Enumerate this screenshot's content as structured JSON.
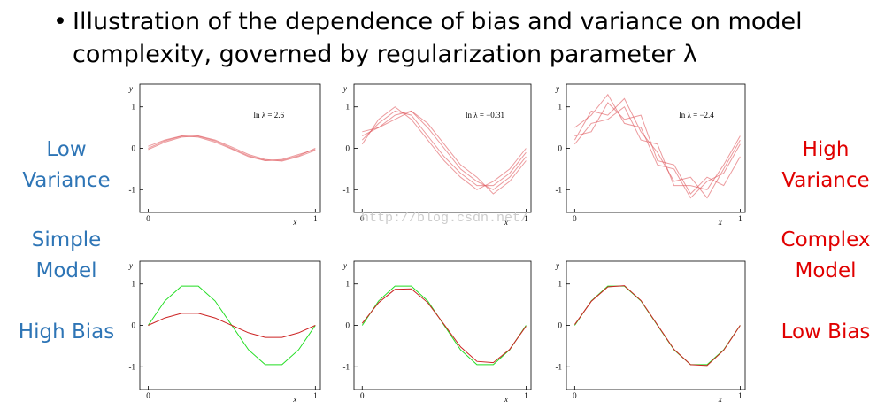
{
  "title_lines": [
    "Illustration of the dependence of bias and variance on model",
    "complexity, governed by regularization parameter λ"
  ],
  "left_labels": [
    [
      "Low",
      "Variance"
    ],
    [
      "Simple",
      "Model"
    ],
    [
      "High Bias"
    ]
  ],
  "right_labels": [
    [
      "High",
      "Variance"
    ],
    [
      "Complex",
      "Model"
    ],
    [
      "Low Bias"
    ]
  ],
  "watermark": "http://blog.csdn.net/",
  "chart_data": [
    {
      "type": "line",
      "annotation": "ln λ = 2.6",
      "x_label": "x",
      "y_label": "y",
      "x": [
        0,
        0.1,
        0.2,
        0.3,
        0.4,
        0.5,
        0.6,
        0.7,
        0.8,
        0.9,
        1
      ],
      "xlim": [
        -0.05,
        1.03
      ],
      "ylim": [
        -1.55,
        1.55
      ],
      "xticks": [
        0,
        1
      ],
      "yticks": [
        -1,
        0,
        1
      ],
      "series": [
        {
          "color": "#e0565b",
          "values": [
            0.0,
            0.18,
            0.29,
            0.29,
            0.18,
            0.0,
            -0.18,
            -0.29,
            -0.29,
            -0.18,
            0.0
          ]
        },
        {
          "color": "#e0565b",
          "values": [
            0.05,
            0.2,
            0.3,
            0.27,
            0.15,
            -0.02,
            -0.2,
            -0.3,
            -0.27,
            -0.15,
            -0.03
          ]
        },
        {
          "color": "#e0565b",
          "values": [
            -0.03,
            0.15,
            0.27,
            0.3,
            0.2,
            0.03,
            -0.15,
            -0.27,
            -0.31,
            -0.2,
            -0.05
          ]
        }
      ]
    },
    {
      "type": "line",
      "annotation": "ln λ = −0.31",
      "x_label": "x",
      "y_label": "y",
      "x": [
        0,
        0.1,
        0.2,
        0.3,
        0.4,
        0.5,
        0.6,
        0.7,
        0.8,
        0.9,
        1
      ],
      "xlim": [
        -0.05,
        1.03
      ],
      "ylim": [
        -1.55,
        1.55
      ],
      "xticks": [
        0,
        1
      ],
      "yticks": [
        -1,
        0,
        1
      ],
      "series": [
        {
          "color": "#e0565b",
          "values": [
            0.2,
            0.6,
            0.9,
            0.8,
            0.3,
            -0.2,
            -0.6,
            -0.9,
            -0.9,
            -0.6,
            -0.1
          ]
        },
        {
          "color": "#e0565b",
          "values": [
            0.3,
            0.5,
            0.8,
            0.9,
            0.5,
            0.0,
            -0.5,
            -0.8,
            -1.0,
            -0.7,
            -0.2
          ]
        },
        {
          "color": "#e0565b",
          "values": [
            0.1,
            0.7,
            1.0,
            0.7,
            0.2,
            -0.3,
            -0.7,
            -1.0,
            -0.8,
            -0.5,
            0.0
          ]
        },
        {
          "color": "#e0565b",
          "values": [
            0.4,
            0.5,
            0.7,
            0.9,
            0.6,
            0.1,
            -0.4,
            -0.7,
            -1.1,
            -0.8,
            -0.3
          ]
        }
      ]
    },
    {
      "type": "line",
      "annotation": "ln λ = −2.4",
      "x_label": "x",
      "y_label": "y",
      "x": [
        0,
        0.1,
        0.2,
        0.3,
        0.4,
        0.5,
        0.6,
        0.7,
        0.8,
        0.9,
        1
      ],
      "xlim": [
        -0.05,
        1.03
      ],
      "ylim": [
        -1.55,
        1.55
      ],
      "xticks": [
        0,
        1
      ],
      "yticks": [
        -1,
        0,
        1
      ],
      "series": [
        {
          "color": "#e0565b",
          "values": [
            0.2,
            0.9,
            0.8,
            1.2,
            0.4,
            -0.1,
            -0.8,
            -0.7,
            -1.2,
            -0.5,
            0.2
          ]
        },
        {
          "color": "#e0565b",
          "values": [
            0.3,
            0.4,
            1.1,
            0.7,
            0.8,
            -0.3,
            -0.4,
            -1.1,
            -0.7,
            -0.9,
            -0.2
          ]
        },
        {
          "color": "#e0565b",
          "values": [
            0.1,
            0.6,
            0.7,
            1.0,
            0.2,
            0.1,
            -0.9,
            -0.9,
            -1.0,
            -0.4,
            0.3
          ]
        },
        {
          "color": "#e0565b",
          "values": [
            0.5,
            0.8,
            1.3,
            0.6,
            0.5,
            -0.4,
            -0.5,
            -1.2,
            -0.8,
            -0.6,
            0.1
          ]
        }
      ]
    },
    {
      "type": "line",
      "x_label": "x",
      "y_label": "y",
      "x": [
        0,
        0.1,
        0.2,
        0.3,
        0.4,
        0.5,
        0.6,
        0.7,
        0.8,
        0.9,
        1
      ],
      "xlim": [
        -0.05,
        1.03
      ],
      "ylim": [
        -1.55,
        1.55
      ],
      "xticks": [
        0,
        1
      ],
      "yticks": [
        -1,
        0,
        1
      ],
      "series": [
        {
          "color": "#22dd22",
          "values": [
            0,
            0.59,
            0.95,
            0.95,
            0.59,
            0,
            -0.59,
            -0.95,
            -0.95,
            -0.59,
            0
          ]
        },
        {
          "color": "#cc2222",
          "values": [
            0,
            0.18,
            0.29,
            0.29,
            0.18,
            0,
            -0.18,
            -0.29,
            -0.29,
            -0.18,
            0
          ]
        }
      ]
    },
    {
      "type": "line",
      "x_label": "x",
      "y_label": "y",
      "x": [
        0,
        0.1,
        0.2,
        0.3,
        0.4,
        0.5,
        0.6,
        0.7,
        0.8,
        0.9,
        1
      ],
      "xlim": [
        -0.05,
        1.03
      ],
      "ylim": [
        -1.55,
        1.55
      ],
      "xticks": [
        0,
        1
      ],
      "yticks": [
        -1,
        0,
        1
      ],
      "series": [
        {
          "color": "#22dd22",
          "values": [
            0,
            0.59,
            0.95,
            0.95,
            0.59,
            0,
            -0.59,
            -0.95,
            -0.95,
            -0.59,
            0
          ]
        },
        {
          "color": "#cc2222",
          "values": [
            0.05,
            0.55,
            0.87,
            0.88,
            0.55,
            0.02,
            -0.52,
            -0.87,
            -0.9,
            -0.58,
            -0.02
          ]
        }
      ]
    },
    {
      "type": "line",
      "x_label": "x",
      "y_label": "y",
      "x": [
        0,
        0.1,
        0.2,
        0.3,
        0.4,
        0.5,
        0.6,
        0.7,
        0.8,
        0.9,
        1
      ],
      "xlim": [
        -0.05,
        1.03
      ],
      "ylim": [
        -1.55,
        1.55
      ],
      "xticks": [
        0,
        1
      ],
      "yticks": [
        -1,
        0,
        1
      ],
      "series": [
        {
          "color": "#22dd22",
          "values": [
            0,
            0.59,
            0.95,
            0.95,
            0.59,
            0,
            -0.59,
            -0.95,
            -0.95,
            -0.59,
            0
          ]
        },
        {
          "color": "#cc2222",
          "values": [
            0.02,
            0.58,
            0.93,
            0.96,
            0.6,
            0.01,
            -0.58,
            -0.95,
            -0.97,
            -0.6,
            0.0
          ]
        }
      ]
    }
  ]
}
